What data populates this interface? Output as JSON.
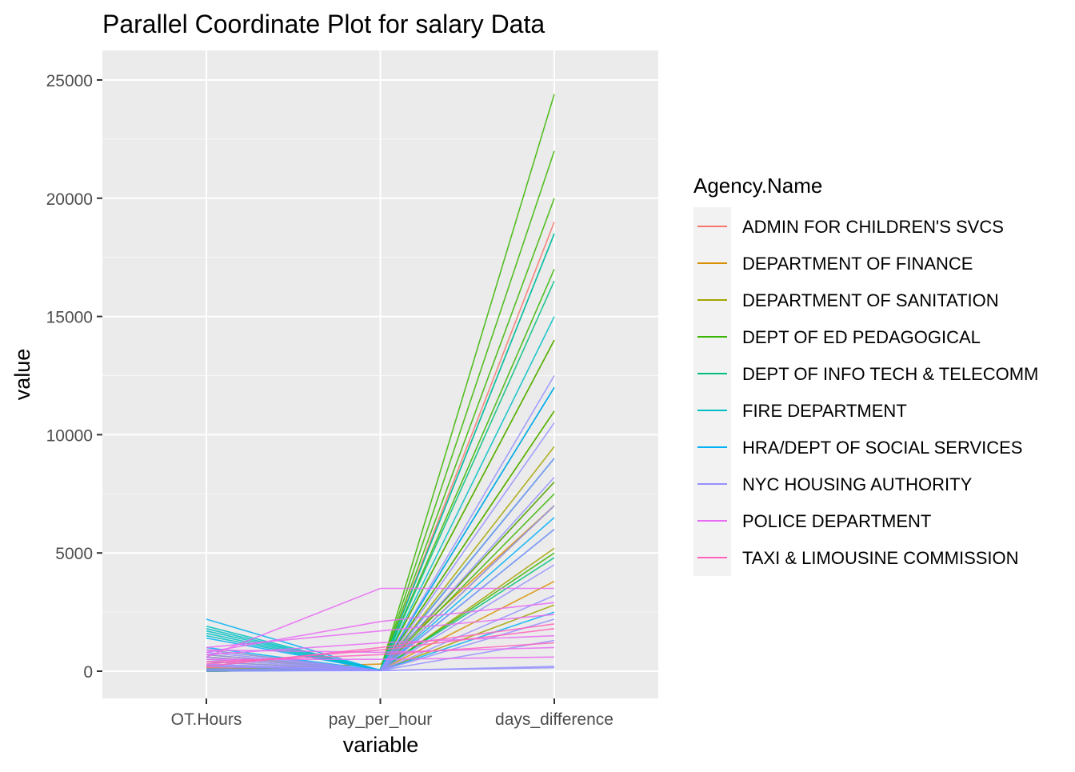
{
  "chart_data": {
    "type": "line",
    "subtype": "parallel-coordinates",
    "title": "Parallel Coordinate Plot for salary Data",
    "xlabel": "variable",
    "ylabel": "value",
    "categories": [
      "OT.Hours",
      "pay_per_hour",
      "days_difference"
    ],
    "ylim": [
      -1150,
      26250
    ],
    "yticks": [
      0,
      5000,
      10000,
      15000,
      20000,
      25000
    ],
    "grid": true,
    "legend": {
      "title": "Agency.Name",
      "position": "right"
    },
    "series": [
      {
        "name": "ADMIN FOR CHILDREN'S SVCS",
        "color": "#F8766D",
        "samples": [
          [
            200,
            40,
            19000
          ],
          [
            150,
            45,
            12000
          ],
          [
            100,
            50,
            8000
          ]
        ]
      },
      {
        "name": "DEPARTMENT OF FINANCE",
        "color": "#D89000",
        "samples": [
          [
            80,
            55,
            14000
          ],
          [
            60,
            300,
            7000
          ],
          [
            120,
            40,
            3800
          ],
          [
            50,
            48,
            11000
          ]
        ]
      },
      {
        "name": "DEPARTMENT OF SANITATION",
        "color": "#A3A500",
        "samples": [
          [
            900,
            30,
            7000
          ],
          [
            700,
            35,
            2800
          ],
          [
            600,
            32,
            5200
          ],
          [
            400,
            40,
            9500
          ]
        ]
      },
      {
        "name": "DEPT OF ED PEDAGOGICAL",
        "color": "#39B600",
        "samples": [
          [
            20,
            60,
            24400
          ],
          [
            10,
            55,
            22000
          ],
          [
            0,
            70,
            20000
          ],
          [
            0,
            65,
            17000
          ],
          [
            30,
            50,
            14000
          ],
          [
            0,
            60,
            11000
          ],
          [
            0,
            58,
            8000
          ],
          [
            0,
            62,
            5000
          ],
          [
            0,
            50,
            7500
          ],
          [
            0,
            66,
            18500
          ]
        ]
      },
      {
        "name": "DEPT OF INFO TECH & TELECOMM",
        "color": "#00BF7D",
        "samples": [
          [
            100,
            60,
            16500
          ],
          [
            50,
            70,
            9000
          ],
          [
            0,
            65,
            4800
          ]
        ]
      },
      {
        "name": "FIRE DEPARTMENT",
        "color": "#00BFC4",
        "samples": [
          [
            1900,
            45,
            18500
          ],
          [
            1700,
            50,
            12000
          ],
          [
            1500,
            48,
            6000
          ],
          [
            1800,
            40,
            9000
          ],
          [
            1600,
            44,
            15000
          ]
        ]
      },
      {
        "name": "HRA/DEPT OF SOCIAL SERVICES",
        "color": "#00B0F6",
        "samples": [
          [
            2200,
            35,
            12000
          ],
          [
            1400,
            38,
            6500
          ],
          [
            1000,
            30,
            2500
          ]
        ]
      },
      {
        "name": "NYC HOUSING AUTHORITY",
        "color": "#9590FF",
        "samples": [
          [
            900,
            30,
            12500
          ],
          [
            700,
            35,
            9000
          ],
          [
            500,
            32,
            6000
          ],
          [
            300,
            28,
            3200
          ],
          [
            100,
            30,
            1300
          ],
          [
            0,
            25,
            200
          ],
          [
            400,
            30,
            4500
          ],
          [
            200,
            33,
            8200
          ],
          [
            600,
            31,
            7000
          ],
          [
            800,
            34,
            10500
          ],
          [
            50,
            29,
            150
          ],
          [
            250,
            27,
            2200
          ]
        ]
      },
      {
        "name": "POLICE DEPARTMENT",
        "color": "#E76BF3",
        "samples": [
          [
            600,
            3500,
            3500
          ],
          [
            800,
            2100,
            2900
          ],
          [
            1000,
            1700,
            2400
          ],
          [
            700,
            1200,
            1500
          ],
          [
            900,
            800,
            1000
          ],
          [
            500,
            500,
            600
          ]
        ]
      },
      {
        "name": "TAXI & LIMOUSINE COMMISSION",
        "color": "#FF62BC",
        "samples": [
          [
            300,
            900,
            1800
          ],
          [
            400,
            700,
            1200
          ],
          [
            200,
            1000,
            2000
          ]
        ]
      }
    ]
  }
}
